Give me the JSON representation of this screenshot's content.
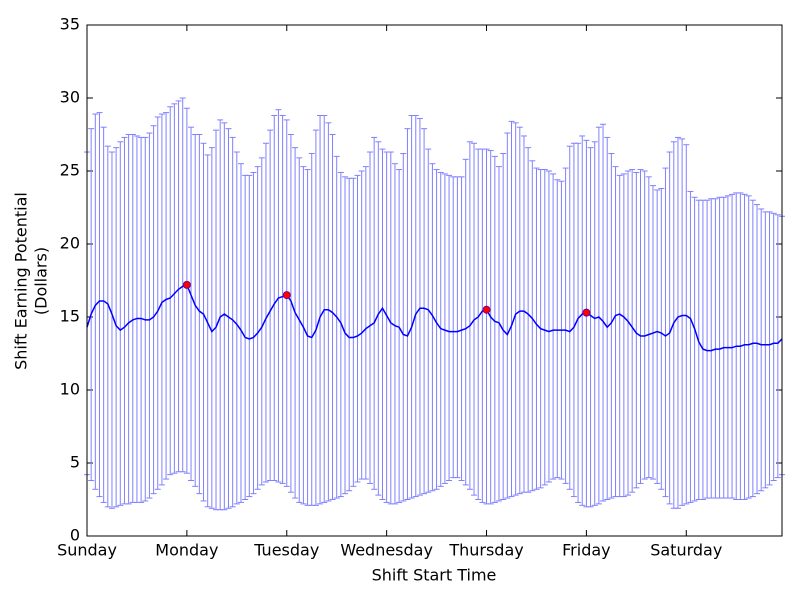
{
  "chart_data": {
    "type": "errorbar_line",
    "xlabel": "Shift Start Time",
    "ylabel": [
      "Shift Earning Potential",
      "(Dollars)"
    ],
    "xlim": [
      0,
      167
    ],
    "xticks": [
      {
        "value": 0,
        "label": "Sunday"
      },
      {
        "value": 24,
        "label": "Monday"
      },
      {
        "value": 48,
        "label": "Tuesday"
      },
      {
        "value": 72,
        "label": "Wednesday"
      },
      {
        "value": 96,
        "label": "Thursday"
      },
      {
        "value": 120,
        "label": "Friday"
      },
      {
        "value": 144,
        "label": "Saturday"
      }
    ],
    "ylim": [
      0,
      35
    ],
    "yticks": [
      0,
      5,
      10,
      15,
      20,
      25,
      30,
      35
    ],
    "series": [
      {
        "color": "#0000ff",
        "error_color": "#8080ff",
        "values": [
          14.3,
          15.2,
          15.8,
          16.1,
          16.1,
          15.9,
          15.2,
          14.4,
          14.1,
          14.3,
          14.6,
          14.8,
          14.9,
          14.9,
          14.8,
          14.8,
          15.0,
          15.4,
          16.0,
          16.2,
          16.3,
          16.6,
          16.9,
          17.1,
          17.2,
          16.5,
          15.8,
          15.4,
          15.2,
          14.6,
          14.0,
          14.3,
          15.0,
          15.2,
          15.0,
          14.8,
          14.5,
          14.1,
          13.6,
          13.5,
          13.6,
          13.9,
          14.3,
          14.9,
          15.4,
          15.9,
          16.3,
          16.4,
          16.5,
          16.1,
          15.3,
          14.8,
          14.3,
          13.7,
          13.6,
          14.1,
          15.0,
          15.5,
          15.5,
          15.3,
          15.0,
          14.6,
          13.9,
          13.6,
          13.6,
          13.7,
          13.9,
          14.2,
          14.4,
          14.6,
          15.2,
          15.6,
          15.1,
          14.6,
          14.4,
          14.3,
          13.8,
          13.7,
          14.3,
          15.2,
          15.6,
          15.6,
          15.5,
          15.1,
          14.6,
          14.2,
          14.1,
          14.0,
          14.0,
          14.0,
          14.1,
          14.2,
          14.4,
          14.8,
          15.0,
          15.4,
          15.5,
          15.0,
          14.7,
          14.6,
          14.1,
          13.8,
          14.4,
          15.2,
          15.4,
          15.4,
          15.2,
          14.9,
          14.5,
          14.2,
          14.1,
          14.0,
          14.1,
          14.1,
          14.1,
          14.1,
          14.0,
          14.3,
          14.9,
          15.2,
          15.3,
          15.1,
          14.9,
          15.0,
          14.7,
          14.3,
          14.6,
          15.1,
          15.2,
          15.0,
          14.7,
          14.3,
          13.9,
          13.7,
          13.7,
          13.8,
          13.9,
          14.0,
          13.9,
          13.7,
          13.9,
          14.6,
          15.0,
          15.1,
          15.1,
          14.9,
          14.2,
          13.3,
          12.8,
          12.7,
          12.7,
          12.8,
          12.8,
          12.9,
          12.9,
          12.9,
          13.0,
          13.0,
          13.1,
          13.1,
          13.2,
          13.2,
          13.1,
          13.1,
          13.1,
          13.2,
          13.2,
          13.5
        ],
        "upper": [
          26.3,
          27.9,
          28.9,
          29.0,
          28.0,
          26.7,
          26.3,
          26.6,
          27.0,
          27.3,
          27.5,
          27.5,
          27.4,
          27.3,
          27.3,
          27.6,
          28.1,
          28.7,
          28.9,
          29.0,
          29.4,
          29.6,
          29.8,
          30.0,
          29.3,
          28.0,
          27.5,
          27.5,
          26.9,
          26.1,
          26.6,
          27.8,
          28.5,
          28.3,
          27.9,
          27.3,
          26.3,
          25.5,
          24.7,
          24.7,
          24.9,
          25.3,
          25.9,
          26.9,
          27.8,
          28.8,
          29.2,
          28.8,
          28.5,
          27.5,
          26.6,
          25.9,
          25.3,
          25.1,
          26.2,
          27.8,
          28.8,
          28.8,
          28.3,
          27.5,
          26.0,
          24.9,
          24.6,
          24.5,
          24.5,
          24.7,
          25.0,
          25.3,
          26.3,
          27.3,
          27.0,
          26.5,
          26.3,
          26.3,
          25.5,
          25.1,
          26.2,
          27.9,
          28.8,
          28.8,
          28.6,
          27.9,
          26.5,
          25.5,
          25.1,
          24.9,
          24.8,
          24.7,
          24.6,
          24.6,
          24.6,
          25.8,
          27.0,
          26.9,
          26.5,
          26.5,
          26.5,
          26.4,
          26.0,
          25.3,
          26.2,
          27.6,
          28.4,
          28.3,
          28.0,
          27.4,
          26.6,
          25.7,
          25.2,
          25.1,
          25.1,
          25.0,
          24.8,
          24.4,
          24.3,
          25.2,
          26.7,
          26.9,
          26.9,
          27.4,
          27.1,
          26.6,
          27.0,
          28.0,
          28.2,
          27.3,
          26.2,
          25.3,
          24.7,
          24.8,
          25.0,
          25.1,
          24.9,
          25.1,
          25.0,
          24.6,
          24.0,
          23.7,
          23.8,
          25.2,
          26.3,
          27.0,
          27.3,
          27.2,
          26.8,
          23.6,
          23.2,
          23.0,
          23.0,
          23.0,
          23.1,
          23.1,
          23.2,
          23.2,
          23.3,
          23.4,
          23.5,
          23.5,
          23.4,
          23.3,
          23.0,
          22.7,
          22.4,
          22.2,
          22.2,
          22.1,
          22.0,
          21.9
        ],
        "lower": [
          4.2,
          3.8,
          3.2,
          2.7,
          2.3,
          2.0,
          1.9,
          2.0,
          2.1,
          2.2,
          2.2,
          2.3,
          2.3,
          2.3,
          2.4,
          2.6,
          2.9,
          3.2,
          3.5,
          3.9,
          4.2,
          4.3,
          4.4,
          4.4,
          4.3,
          3.8,
          3.4,
          2.9,
          2.4,
          2.0,
          1.9,
          1.8,
          1.8,
          1.8,
          1.9,
          2.0,
          2.2,
          2.3,
          2.5,
          2.7,
          2.9,
          3.2,
          3.5,
          3.7,
          3.8,
          3.8,
          3.7,
          3.6,
          3.4,
          3.0,
          2.6,
          2.3,
          2.2,
          2.1,
          2.1,
          2.1,
          2.2,
          2.3,
          2.4,
          2.5,
          2.6,
          2.7,
          2.9,
          3.1,
          3.4,
          3.7,
          3.9,
          3.9,
          3.6,
          3.2,
          2.8,
          2.5,
          2.3,
          2.2,
          2.2,
          2.3,
          2.4,
          2.5,
          2.6,
          2.7,
          2.8,
          2.9,
          3.0,
          3.1,
          3.2,
          3.4,
          3.6,
          3.8,
          4.0,
          4.0,
          3.8,
          3.5,
          3.2,
          2.8,
          2.5,
          2.3,
          2.2,
          2.2,
          2.3,
          2.4,
          2.5,
          2.6,
          2.7,
          2.8,
          2.9,
          3.0,
          3.0,
          3.1,
          3.2,
          3.3,
          3.5,
          3.7,
          3.9,
          4.0,
          3.9,
          3.6,
          3.2,
          2.7,
          2.3,
          2.1,
          2.0,
          2.0,
          2.1,
          2.2,
          2.4,
          2.5,
          2.6,
          2.7,
          2.7,
          2.7,
          2.8,
          3.0,
          3.3,
          3.6,
          3.9,
          4.0,
          3.9,
          3.6,
          3.2,
          2.7,
          2.2,
          1.9,
          1.9,
          2.1,
          2.2,
          2.3,
          2.4,
          2.5,
          2.5,
          2.6,
          2.6,
          2.6,
          2.6,
          2.6,
          2.6,
          2.6,
          2.5,
          2.5,
          2.5,
          2.6,
          2.7,
          2.9,
          3.1,
          3.3,
          3.5,
          3.8,
          4.0,
          4.2
        ]
      }
    ],
    "highlights": {
      "color": "#ff0000",
      "x": [
        24,
        48,
        96,
        120
      ],
      "values": [
        17.2,
        16.5,
        15.5,
        15.3
      ]
    }
  }
}
